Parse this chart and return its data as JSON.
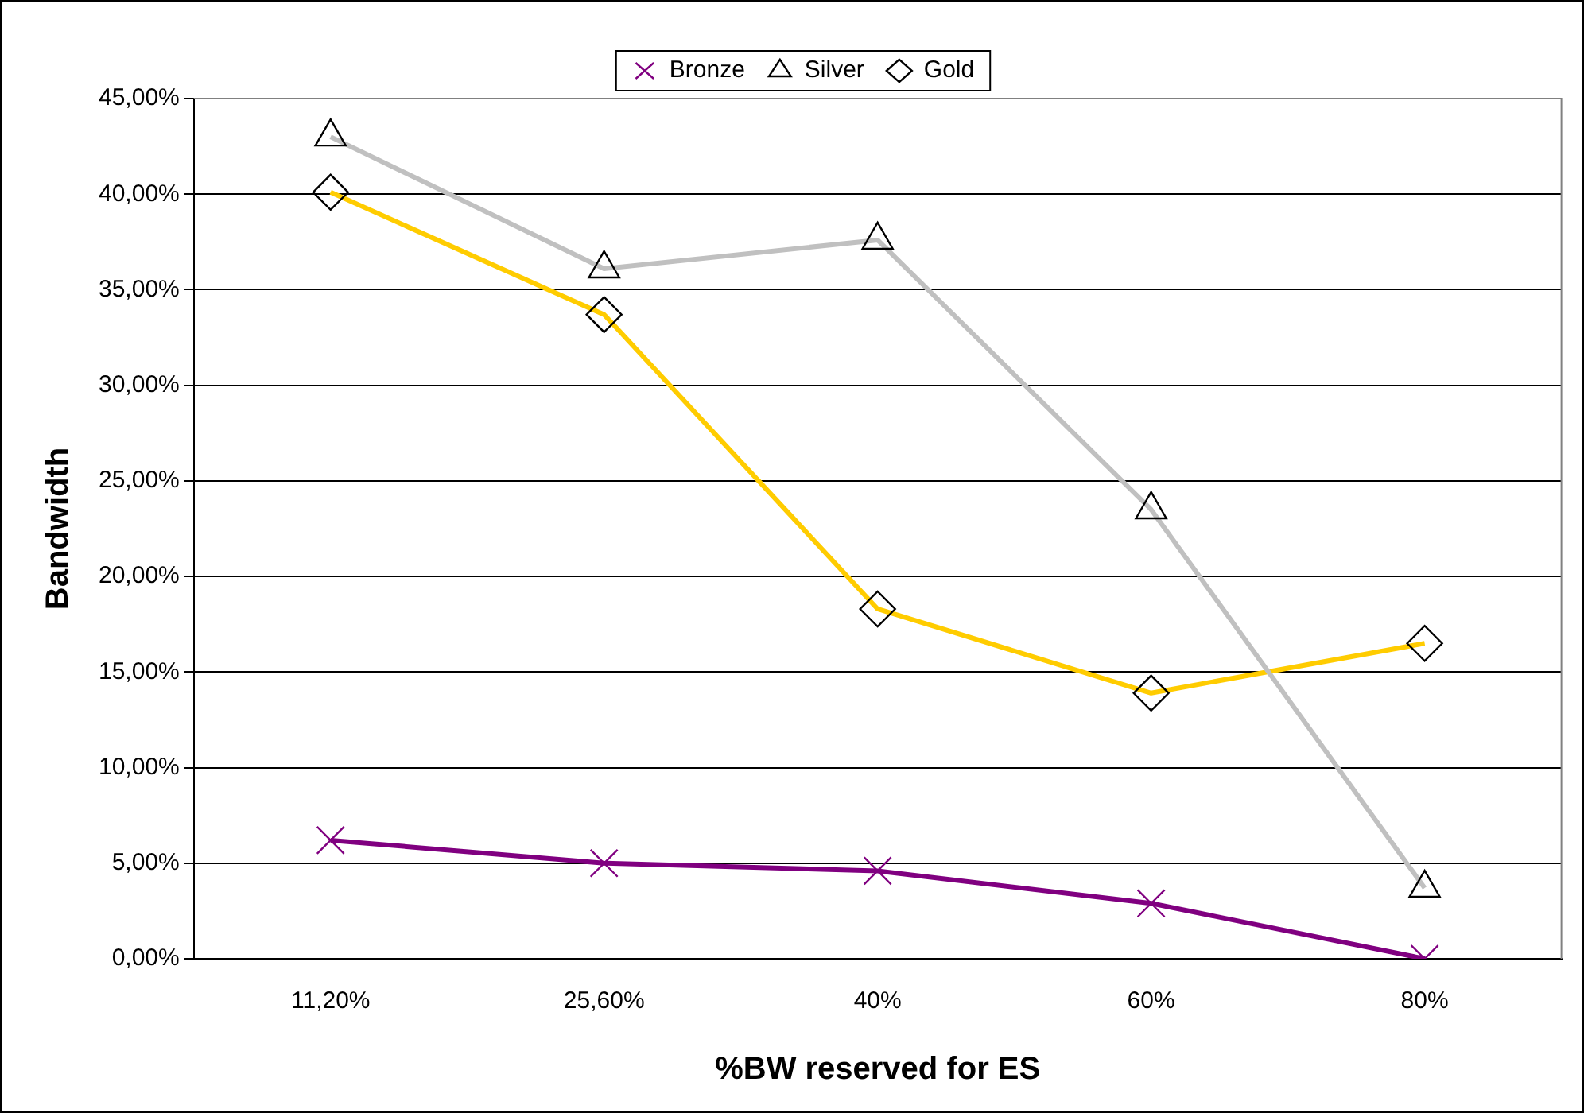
{
  "chart_data": {
    "type": "line",
    "xlabel": "%BW reserved for ES",
    "ylabel": "Bandwidth",
    "categories": [
      "11,20%",
      "25,60%",
      "40%",
      "60%",
      "80%"
    ],
    "series": [
      {
        "name": "Bronze",
        "color": "#800080",
        "marker": "cross",
        "values": [
          6.2,
          5.0,
          4.6,
          2.9,
          0.0
        ]
      },
      {
        "name": "Silver",
        "color": "#c0c0c0",
        "marker": "triangle",
        "values": [
          43.0,
          36.1,
          37.6,
          23.5,
          3.7
        ]
      },
      {
        "name": "Gold",
        "color": "#ffcc00",
        "marker": "diamond",
        "values": [
          40.1,
          33.7,
          18.3,
          13.9,
          16.5
        ]
      }
    ],
    "ylim": [
      0,
      45
    ],
    "yticks": [
      {
        "value": 0,
        "label": "0,00%"
      },
      {
        "value": 5,
        "label": "5,00%"
      },
      {
        "value": 10,
        "label": "10,00%"
      },
      {
        "value": 15,
        "label": "15,00%"
      },
      {
        "value": 20,
        "label": "20,00%"
      },
      {
        "value": 25,
        "label": "25,00%"
      },
      {
        "value": 30,
        "label": "30,00%"
      },
      {
        "value": 35,
        "label": "35,00%"
      },
      {
        "value": 40,
        "label": "40,00%"
      },
      {
        "value": 45,
        "label": "45,00%"
      }
    ],
    "grid": "y",
    "legend": "top",
    "line_style": "solid"
  }
}
